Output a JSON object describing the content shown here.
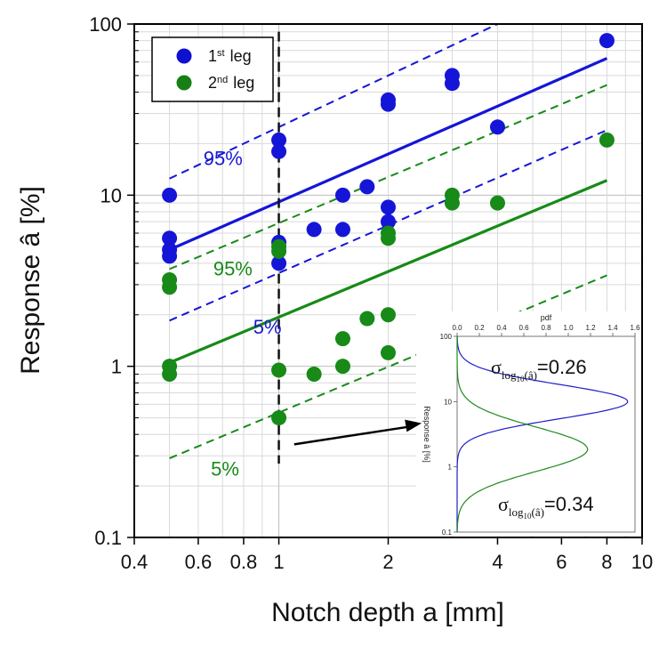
{
  "chart_data": {
    "type": "scatter",
    "xlabel": "Notch depth a [mm]",
    "ylabel": "Response â [%]",
    "xscale": "log",
    "yscale": "log",
    "xlim": [
      0.4,
      10
    ],
    "ylim": [
      0.1,
      100
    ],
    "x_ticks": [
      0.4,
      0.6,
      0.8,
      1,
      2,
      4,
      6,
      8,
      10
    ],
    "x_tick_labels": [
      "0.4",
      "0.6",
      "0.8",
      "1",
      "2",
      "4",
      "6",
      "8",
      "10"
    ],
    "y_ticks": [
      0.1,
      1,
      10,
      100
    ],
    "y_tick_labels": [
      "0.1",
      "1",
      "10",
      "100"
    ],
    "grid": true,
    "legend": {
      "placement": "top-left",
      "entries": [
        {
          "base": "1",
          "sup": "st",
          "rest": " leg",
          "color": "#1010d0"
        },
        {
          "base": "2",
          "sup": "nd",
          "rest": " leg",
          "color": "#168016"
        }
      ]
    },
    "series": [
      {
        "color": "#1515d8",
        "points": [
          [
            0.5,
            10
          ],
          [
            0.5,
            5.6
          ],
          [
            0.5,
            4.8
          ],
          [
            0.5,
            4.4
          ],
          [
            1,
            21
          ],
          [
            1,
            18
          ],
          [
            1,
            5.3
          ],
          [
            1,
            4.0
          ],
          [
            1.25,
            6.3
          ],
          [
            1.5,
            10
          ],
          [
            1.5,
            6.3
          ],
          [
            1.75,
            11.2
          ],
          [
            2,
            36
          ],
          [
            2,
            34
          ],
          [
            2,
            8.5
          ],
          [
            2,
            7.0
          ],
          [
            3,
            50
          ],
          [
            3,
            45
          ],
          [
            4,
            25
          ],
          [
            8,
            80
          ]
        ],
        "fit": {
          "median": [
            [
              0.5,
              4.8
            ],
            [
              8,
              63
            ]
          ],
          "upper": [
            [
              0.5,
              12.5
            ],
            [
              4,
              100
            ]
          ],
          "lower": [
            [
              0.5,
              1.85
            ],
            [
              8,
              24
            ]
          ]
        }
      },
      {
        "color": "#178a17",
        "points": [
          [
            0.5,
            3.2
          ],
          [
            0.5,
            2.9
          ],
          [
            0.5,
            1.0
          ],
          [
            0.5,
            0.9
          ],
          [
            1,
            5.0
          ],
          [
            1,
            4.7
          ],
          [
            1,
            0.95
          ],
          [
            1,
            0.5
          ],
          [
            1.25,
            0.9
          ],
          [
            1.5,
            1.45
          ],
          [
            1.5,
            1.0
          ],
          [
            1.75,
            1.9
          ],
          [
            2,
            6.0
          ],
          [
            2,
            5.6
          ],
          [
            2,
            2.0
          ],
          [
            2,
            1.2
          ],
          [
            3,
            10
          ],
          [
            3,
            9
          ],
          [
            4,
            9
          ],
          [
            8,
            21
          ]
        ],
        "fit": {
          "median": [
            [
              0.5,
              1.05
            ],
            [
              8,
              12.2
            ]
          ],
          "upper": [
            [
              0.5,
              3.7
            ],
            [
              8,
              44
            ]
          ],
          "lower": [
            [
              0.5,
              0.29
            ],
            [
              8,
              3.4
            ]
          ]
        }
      }
    ],
    "annotations": [
      {
        "text": "95%",
        "color": "#1a1ad0",
        "x": 0.62,
        "y": 15
      },
      {
        "text": "5%",
        "color": "#1a1ad0",
        "x": 0.85,
        "y": 1.55
      },
      {
        "text": "95%",
        "color": "#178a17",
        "x": 0.66,
        "y": 3.4
      },
      {
        "text": "5%",
        "color": "#178a17",
        "x": 0.65,
        "y": 0.23
      }
    ],
    "vertical_marker": {
      "x": 1,
      "y_range": [
        0.27,
        80
      ]
    },
    "arrow": {
      "from": [
        1.03,
        0.35
      ],
      "to": [
        2.5,
        0.5
      ]
    },
    "inset": {
      "top_axis_label": "pdf",
      "left_axis_label": "Response â [%]",
      "x_ticks": [
        0,
        0.2,
        0.4,
        0.6,
        0.8,
        1,
        1.2,
        1.4,
        1.6
      ],
      "x_tick_labels": [
        "0.0",
        "0.2",
        "0.4",
        "0.6",
        "0.8",
        "1.0",
        "1.2",
        "1.4",
        "1.6"
      ],
      "y_ticks": [
        0.1,
        1,
        10,
        100
      ],
      "y_tick_labels": [
        "0.1",
        "1",
        "10",
        "100"
      ],
      "xlim": [
        0,
        1.6
      ],
      "ylim": [
        0.1,
        100
      ],
      "curves": [
        {
          "color": "#2020c8",
          "sigma": 0.26,
          "mu_log10": 1.0
        },
        {
          "color": "#1f8a1f",
          "sigma": 0.34,
          "mu_log10": 0.27
        }
      ],
      "sigma_labels": [
        {
          "symbol": "σ",
          "sub": "log",
          "subsub": "10",
          "arg": "(â)",
          "value": "=0.26"
        },
        {
          "symbol": "σ",
          "sub": "log",
          "subsub": "10",
          "arg": "(â)",
          "value": "=0.34"
        }
      ]
    }
  }
}
